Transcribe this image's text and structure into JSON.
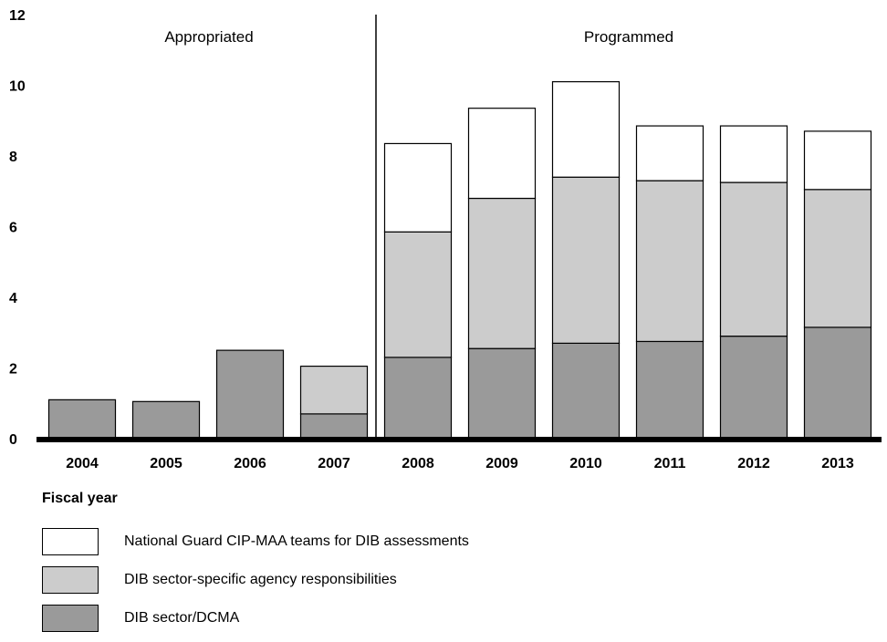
{
  "chart_data": {
    "type": "bar",
    "stacked": true,
    "categories": [
      "2004",
      "2005",
      "2006",
      "2007",
      "2008",
      "2009",
      "2010",
      "2011",
      "2012",
      "2013"
    ],
    "series": [
      {
        "name": "DIB sector/DCMA",
        "color": "#9a9a9a",
        "values": [
          1.1,
          1.05,
          2.5,
          0.7,
          2.3,
          2.55,
          2.7,
          2.75,
          2.9,
          3.15
        ]
      },
      {
        "name": "DIB sector-specific agency responsibilities",
        "color": "#cccccc",
        "values": [
          0,
          0,
          0,
          1.35,
          3.55,
          4.25,
          4.7,
          4.55,
          4.35,
          3.9
        ]
      },
      {
        "name": "National Guard CIP-MAA teams for DIB assessments",
        "color": "#ffffff",
        "values": [
          0,
          0,
          0,
          0,
          2.5,
          2.55,
          2.7,
          1.55,
          1.6,
          1.65
        ]
      }
    ],
    "ylim": [
      0,
      12
    ],
    "yticks": [
      "0",
      "2",
      "4",
      "6",
      "8",
      "10",
      "12"
    ],
    "xlabel": "Fiscal year",
    "ylabel": "",
    "annotations": [
      "Appropriated",
      "Programmed"
    ],
    "grid": false
  },
  "legend_order": [
    "National Guard CIP-MAA teams for DIB assessments",
    "DIB sector-specific agency responsibilities",
    "DIB sector/DCMA"
  ]
}
